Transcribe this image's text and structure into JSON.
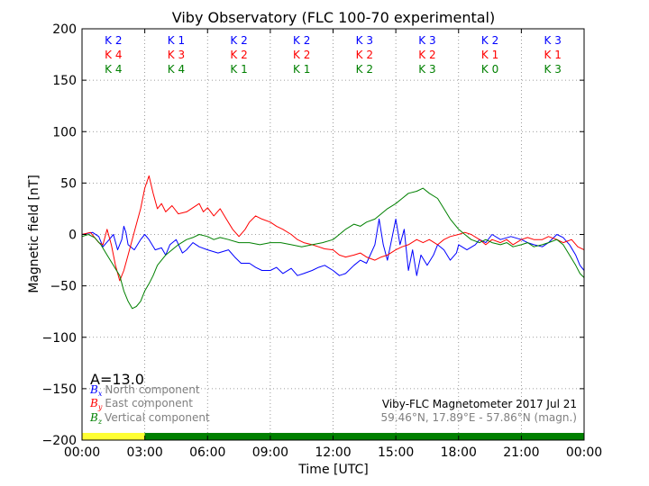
{
  "colors": {
    "bx": "#0000ff",
    "by": "#ff0000",
    "bz": "#008000",
    "yellow": "#ffff33",
    "green": "#33ee33",
    "grid": "#7f7f7f",
    "note": "#808080"
  },
  "chart_data": {
    "type": "line",
    "title": "Viby Observatory (FLC 100-70 experimental)",
    "xlabel": "Time [UTC]",
    "ylabel": "Magnetic field [nT]",
    "xlim": [
      0,
      24
    ],
    "ylim": [
      -200,
      200
    ],
    "grid": true,
    "x_tick_values": [
      0,
      3,
      6,
      9,
      12,
      15,
      18,
      21,
      24
    ],
    "x_tick_labels": [
      "00:00",
      "03:00",
      "06:00",
      "09:00",
      "12:00",
      "15:00",
      "18:00",
      "21:00",
      "00:00"
    ],
    "y_tick_values": [
      -200,
      -150,
      -100,
      -50,
      0,
      50,
      100,
      150,
      200
    ],
    "y_tick_labels": [
      "−200",
      "−150",
      "−100",
      "−50",
      "0",
      "50",
      "100",
      "150",
      "200"
    ],
    "a_index": "A=13.0",
    "legend_placement": "bottom-left",
    "legend": [
      {
        "symbol": "B",
        "sub": "x",
        "label": "North component"
      },
      {
        "symbol": "B",
        "sub": "y",
        "label": "East component"
      },
      {
        "symbol": "B",
        "sub": "z",
        "label": "Vertical component"
      }
    ],
    "info_line1": "Viby-FLC Magnetometer 2017 Jul 21",
    "info_line2": "59.46°N, 17.89°E - 57.86°N (magn.)",
    "k_rows": [
      {
        "color": "blue",
        "values": [
          "K 2",
          "K 1",
          "K 2",
          "K 2",
          "K 3",
          "K 3",
          "K 2",
          "K 3"
        ]
      },
      {
        "color": "red",
        "values": [
          "K 4",
          "K 3",
          "K 2",
          "K 2",
          "K 2",
          "K 2",
          "K 1",
          "K 1"
        ]
      },
      {
        "color": "green",
        "values": [
          "K 4",
          "K 4",
          "K 1",
          "K 1",
          "K 2",
          "K 3",
          "K 0",
          "K 3"
        ]
      }
    ],
    "activity_bar": [
      {
        "from": 0,
        "to": 3,
        "color": "yellow"
      },
      {
        "from": 3,
        "to": 24,
        "color": "green"
      }
    ],
    "series": [
      {
        "name": "Bx North component",
        "color": "blue",
        "points": [
          [
            0,
            0
          ],
          [
            0.5,
            2
          ],
          [
            0.8,
            -2
          ],
          [
            1.0,
            -12
          ],
          [
            1.3,
            -5
          ],
          [
            1.5,
            0
          ],
          [
            1.7,
            -15
          ],
          [
            1.9,
            -5
          ],
          [
            2.0,
            8
          ],
          [
            2.1,
            2
          ],
          [
            2.2,
            -10
          ],
          [
            2.5,
            -15
          ],
          [
            2.8,
            -5
          ],
          [
            3.0,
            0
          ],
          [
            3.2,
            -5
          ],
          [
            3.5,
            -15
          ],
          [
            3.8,
            -13
          ],
          [
            4.0,
            -20
          ],
          [
            4.2,
            -10
          ],
          [
            4.5,
            -5
          ],
          [
            4.8,
            -18
          ],
          [
            5.0,
            -15
          ],
          [
            5.3,
            -8
          ],
          [
            5.6,
            -12
          ],
          [
            6.0,
            -15
          ],
          [
            6.5,
            -18
          ],
          [
            7.0,
            -15
          ],
          [
            7.3,
            -22
          ],
          [
            7.6,
            -28
          ],
          [
            8.0,
            -28
          ],
          [
            8.3,
            -32
          ],
          [
            8.6,
            -35
          ],
          [
            9.0,
            -35
          ],
          [
            9.3,
            -32
          ],
          [
            9.6,
            -38
          ],
          [
            10.0,
            -33
          ],
          [
            10.3,
            -40
          ],
          [
            10.6,
            -38
          ],
          [
            11.0,
            -35
          ],
          [
            11.3,
            -32
          ],
          [
            11.6,
            -30
          ],
          [
            12.0,
            -35
          ],
          [
            12.3,
            -40
          ],
          [
            12.6,
            -38
          ],
          [
            13.0,
            -30
          ],
          [
            13.3,
            -25
          ],
          [
            13.6,
            -28
          ],
          [
            14.0,
            -10
          ],
          [
            14.2,
            15
          ],
          [
            14.4,
            -10
          ],
          [
            14.6,
            -25
          ],
          [
            14.8,
            -5
          ],
          [
            15.0,
            15
          ],
          [
            15.2,
            -10
          ],
          [
            15.4,
            5
          ],
          [
            15.6,
            -35
          ],
          [
            15.8,
            -15
          ],
          [
            16.0,
            -40
          ],
          [
            16.2,
            -20
          ],
          [
            16.5,
            -30
          ],
          [
            16.8,
            -20
          ],
          [
            17.0,
            -10
          ],
          [
            17.3,
            -15
          ],
          [
            17.6,
            -25
          ],
          [
            17.9,
            -18
          ],
          [
            18.0,
            -10
          ],
          [
            18.4,
            -15
          ],
          [
            18.8,
            -10
          ],
          [
            19.0,
            -5
          ],
          [
            19.3,
            -8
          ],
          [
            19.6,
            0
          ],
          [
            20.0,
            -5
          ],
          [
            20.5,
            -2
          ],
          [
            21.0,
            -5
          ],
          [
            21.3,
            -8
          ],
          [
            21.6,
            -10
          ],
          [
            22.0,
            -12
          ],
          [
            22.3,
            -8
          ],
          [
            22.7,
            0
          ],
          [
            23.0,
            -3
          ],
          [
            23.3,
            -10
          ],
          [
            23.6,
            -20
          ],
          [
            23.8,
            -30
          ],
          [
            24,
            -35
          ]
        ]
      },
      {
        "name": "By East component",
        "color": "red",
        "points": [
          [
            0,
            0
          ],
          [
            0.4,
            2
          ],
          [
            0.8,
            -8
          ],
          [
            1.0,
            -10
          ],
          [
            1.2,
            5
          ],
          [
            1.4,
            -10
          ],
          [
            1.6,
            -30
          ],
          [
            1.8,
            -45
          ],
          [
            2.0,
            -35
          ],
          [
            2.2,
            -20
          ],
          [
            2.4,
            -5
          ],
          [
            2.6,
            10
          ],
          [
            2.8,
            25
          ],
          [
            3.0,
            45
          ],
          [
            3.2,
            57
          ],
          [
            3.4,
            40
          ],
          [
            3.6,
            25
          ],
          [
            3.8,
            30
          ],
          [
            4.0,
            22
          ],
          [
            4.3,
            28
          ],
          [
            4.6,
            20
          ],
          [
            5.0,
            22
          ],
          [
            5.3,
            26
          ],
          [
            5.6,
            30
          ],
          [
            5.8,
            22
          ],
          [
            6.0,
            26
          ],
          [
            6.3,
            18
          ],
          [
            6.6,
            25
          ],
          [
            6.9,
            15
          ],
          [
            7.2,
            5
          ],
          [
            7.5,
            -2
          ],
          [
            7.8,
            5
          ],
          [
            8.0,
            12
          ],
          [
            8.3,
            18
          ],
          [
            8.6,
            15
          ],
          [
            9.0,
            12
          ],
          [
            9.3,
            8
          ],
          [
            9.6,
            5
          ],
          [
            10.0,
            0
          ],
          [
            10.3,
            -5
          ],
          [
            10.6,
            -8
          ],
          [
            11.0,
            -10
          ],
          [
            11.3,
            -12
          ],
          [
            11.6,
            -14
          ],
          [
            12.0,
            -15
          ],
          [
            12.3,
            -20
          ],
          [
            12.6,
            -22
          ],
          [
            13.0,
            -20
          ],
          [
            13.3,
            -18
          ],
          [
            13.6,
            -22
          ],
          [
            14.0,
            -25
          ],
          [
            14.3,
            -22
          ],
          [
            14.6,
            -20
          ],
          [
            15.0,
            -15
          ],
          [
            15.3,
            -12
          ],
          [
            15.6,
            -10
          ],
          [
            16.0,
            -5
          ],
          [
            16.3,
            -8
          ],
          [
            16.6,
            -5
          ],
          [
            17.0,
            -10
          ],
          [
            17.3,
            -5
          ],
          [
            17.6,
            -2
          ],
          [
            18.0,
            0
          ],
          [
            18.3,
            2
          ],
          [
            18.6,
            0
          ],
          [
            19.0,
            -5
          ],
          [
            19.3,
            -10
          ],
          [
            19.6,
            -5
          ],
          [
            20.0,
            -8
          ],
          [
            20.3,
            -5
          ],
          [
            20.6,
            -10
          ],
          [
            21.0,
            -5
          ],
          [
            21.3,
            -3
          ],
          [
            21.6,
            -5
          ],
          [
            22.0,
            -5
          ],
          [
            22.3,
            -2
          ],
          [
            22.7,
            -5
          ],
          [
            23.0,
            -8
          ],
          [
            23.4,
            -5
          ],
          [
            23.7,
            -12
          ],
          [
            24,
            -15
          ]
        ]
      },
      {
        "name": "Bz Vertical component",
        "color": "green",
        "points": [
          [
            0,
            -2
          ],
          [
            0.3,
            0
          ],
          [
            0.6,
            -3
          ],
          [
            0.9,
            -10
          ],
          [
            1.2,
            -20
          ],
          [
            1.5,
            -30
          ],
          [
            1.8,
            -40
          ],
          [
            2.0,
            -55
          ],
          [
            2.2,
            -65
          ],
          [
            2.4,
            -72
          ],
          [
            2.6,
            -70
          ],
          [
            2.8,
            -65
          ],
          [
            3.0,
            -55
          ],
          [
            3.2,
            -48
          ],
          [
            3.4,
            -40
          ],
          [
            3.6,
            -30
          ],
          [
            3.8,
            -25
          ],
          [
            4.0,
            -20
          ],
          [
            4.3,
            -15
          ],
          [
            4.6,
            -10
          ],
          [
            5.0,
            -5
          ],
          [
            5.3,
            -3
          ],
          [
            5.6,
            0
          ],
          [
            6.0,
            -2
          ],
          [
            6.3,
            -5
          ],
          [
            6.6,
            -3
          ],
          [
            7.0,
            -5
          ],
          [
            7.5,
            -8
          ],
          [
            8.0,
            -8
          ],
          [
            8.5,
            -10
          ],
          [
            9.0,
            -8
          ],
          [
            9.5,
            -8
          ],
          [
            10.0,
            -10
          ],
          [
            10.5,
            -12
          ],
          [
            11.0,
            -10
          ],
          [
            11.5,
            -8
          ],
          [
            12.0,
            -5
          ],
          [
            12.3,
            0
          ],
          [
            12.6,
            5
          ],
          [
            13.0,
            10
          ],
          [
            13.3,
            8
          ],
          [
            13.6,
            12
          ],
          [
            14.0,
            15
          ],
          [
            14.3,
            20
          ],
          [
            14.6,
            25
          ],
          [
            15.0,
            30
          ],
          [
            15.3,
            35
          ],
          [
            15.6,
            40
          ],
          [
            16.0,
            42
          ],
          [
            16.3,
            45
          ],
          [
            16.6,
            40
          ],
          [
            17.0,
            35
          ],
          [
            17.3,
            25
          ],
          [
            17.6,
            15
          ],
          [
            18.0,
            5
          ],
          [
            18.3,
            0
          ],
          [
            18.6,
            -5
          ],
          [
            19.0,
            -8
          ],
          [
            19.3,
            -5
          ],
          [
            19.6,
            -8
          ],
          [
            20.0,
            -10
          ],
          [
            20.3,
            -8
          ],
          [
            20.6,
            -12
          ],
          [
            21.0,
            -10
          ],
          [
            21.3,
            -8
          ],
          [
            21.6,
            -12
          ],
          [
            22.0,
            -10
          ],
          [
            22.3,
            -8
          ],
          [
            22.7,
            -5
          ],
          [
            23.0,
            -10
          ],
          [
            23.3,
            -20
          ],
          [
            23.6,
            -30
          ],
          [
            23.8,
            -38
          ],
          [
            24,
            -42
          ]
        ]
      }
    ]
  }
}
